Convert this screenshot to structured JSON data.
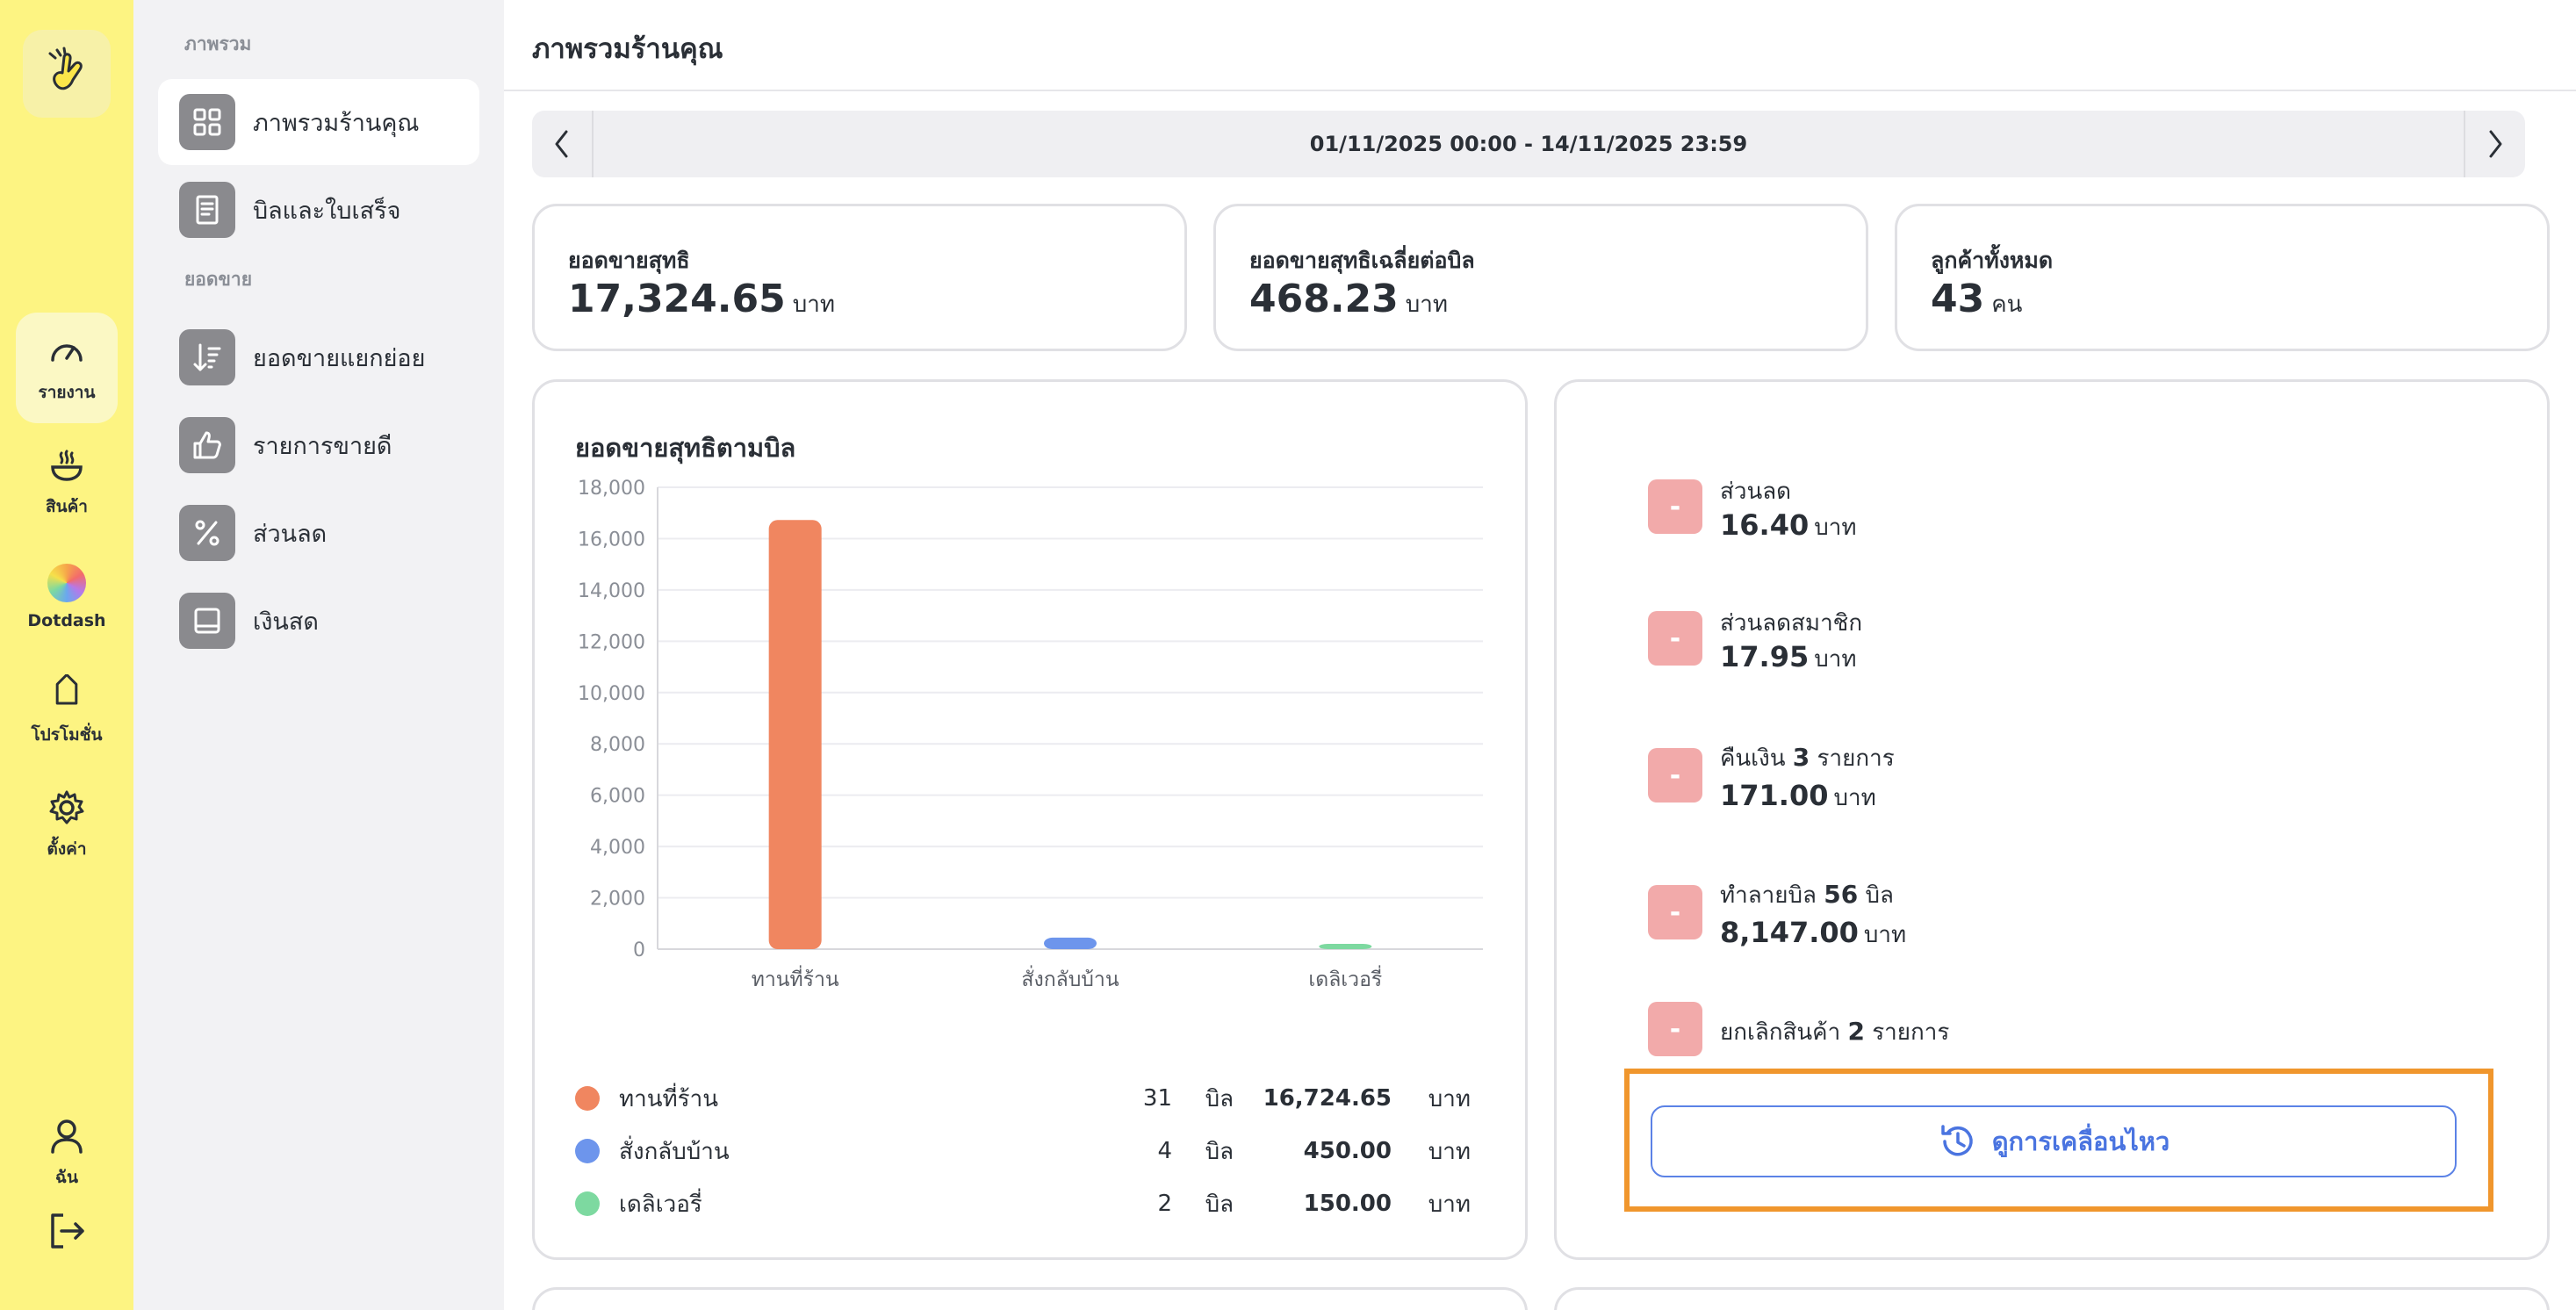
{
  "rail": {
    "items": [
      {
        "label": "รายงาน",
        "icon": "gauge-icon"
      },
      {
        "label": "สินค้า",
        "icon": "bowl-icon"
      },
      {
        "label": "Dotdash",
        "icon": "color-wheel-icon"
      },
      {
        "label": "โปรโมชั่น",
        "icon": "tag-icon"
      },
      {
        "label": "ตั้งค่า",
        "icon": "gear-icon"
      },
      {
        "label": "ฉัน",
        "icon": "user-icon"
      }
    ]
  },
  "sidebar": {
    "section_overview": "ภาพรวม",
    "section_sales": "ยอดขาย",
    "items": [
      {
        "label": "ภาพรวมร้านคุณ",
        "icon": "dashboard-grid-icon"
      },
      {
        "label": "บิลและใบเสร็จ",
        "icon": "receipt-icon"
      },
      {
        "label": "ยอดขายแยกย่อย",
        "icon": "sort-desc-icon"
      },
      {
        "label": "รายการขายดี",
        "icon": "thumbs-up-icon"
      },
      {
        "label": "ส่วนลด",
        "icon": "percent-icon"
      },
      {
        "label": "เงินสด",
        "icon": "cash-icon"
      }
    ]
  },
  "header": {
    "title": "ภาพรวมร้านคุณ"
  },
  "date_range": "01/11/2025 00:00 - 14/11/2025 23:59",
  "stats": [
    {
      "label": "ยอดขายสุทธิ",
      "value": "17,324.65",
      "unit": "บาท"
    },
    {
      "label": "ยอดขายสุทธิเฉลี่ยต่อบิล",
      "value": "468.23",
      "unit": "บาท"
    },
    {
      "label": "ลูกค้าทั้งหมด",
      "value": "43",
      "unit": "คน"
    }
  ],
  "chart_data": {
    "type": "bar",
    "title": "ยอดขายสุทธิตามบิล",
    "categories": [
      "ทานที่ร้าน",
      "สั่งกลับบ้าน",
      "เดลิเวอรี่"
    ],
    "values": [
      16724.65,
      450.0,
      150.0
    ],
    "colors": [
      "#f08660",
      "#6d95ec",
      "#7dd9a0"
    ],
    "ylim": [
      0,
      18000
    ],
    "yticks": [
      "18,000",
      "16,000",
      "14,000",
      "12,000",
      "10,000",
      "8,000",
      "6,000",
      "4,000",
      "2,000",
      "0"
    ],
    "grid": true
  },
  "legend": [
    {
      "name": "ทานที่ร้าน",
      "count": "31",
      "count_unit": "บิล",
      "amount": "16,724.65",
      "unit": "บาท",
      "color": "#f08660"
    },
    {
      "name": "สั่งกลับบ้าน",
      "count": "4",
      "count_unit": "บิล",
      "amount": "450.00",
      "unit": "บาท",
      "color": "#6d95ec"
    },
    {
      "name": "เดลิเวอรี่",
      "count": "2",
      "count_unit": "บิล",
      "amount": "150.00",
      "unit": "บาท",
      "color": "#7dd9a0"
    }
  ],
  "adjustments": {
    "badge": "-",
    "discount": {
      "label": "ส่วนลด",
      "value": "16.40",
      "unit": "บาท"
    },
    "member_discount": {
      "label": "ส่วนลดสมาชิก",
      "value": "17.95",
      "unit": "บาท"
    },
    "refund": {
      "prefix": "คืนเงิน",
      "count": "3",
      "suffix": "รายการ",
      "value": "171.00",
      "unit": "บาท"
    },
    "void_bill": {
      "prefix": "ทำลายบิล",
      "count": "56",
      "suffix": "บิล",
      "value": "8,147.00",
      "unit": "บาท"
    },
    "cancel_item": {
      "prefix": "ยกเลิกสินค้า",
      "count": "2",
      "suffix": "รายการ"
    }
  },
  "movement_button": "ดูการเคลื่อนไหว"
}
